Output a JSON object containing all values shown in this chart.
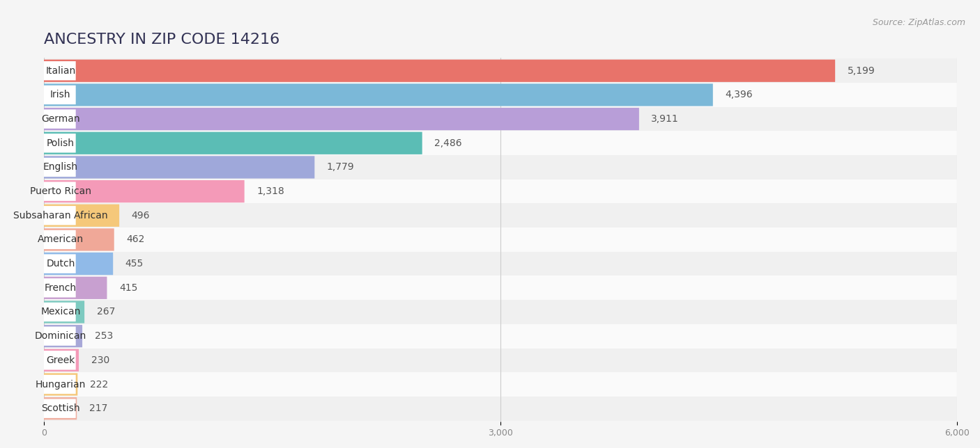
{
  "title": "ANCESTRY IN ZIP CODE 14216",
  "source": "Source: ZipAtlas.com",
  "categories": [
    "Italian",
    "Irish",
    "German",
    "Polish",
    "English",
    "Puerto Rican",
    "Subsaharan African",
    "American",
    "Dutch",
    "French",
    "Mexican",
    "Dominican",
    "Greek",
    "Hungarian",
    "Scottish"
  ],
  "values": [
    5199,
    4396,
    3911,
    2486,
    1779,
    1318,
    496,
    462,
    455,
    415,
    267,
    253,
    230,
    222,
    217
  ],
  "bar_colors": [
    "#E8736A",
    "#7BB8D8",
    "#B89ED8",
    "#5BBDB5",
    "#9FA8DA",
    "#F49AB8",
    "#F5C87A",
    "#F0A898",
    "#90BAE8",
    "#C8A0D0",
    "#7DCAC0",
    "#A8A8D8",
    "#F49AB8",
    "#F5C87A",
    "#F0AFA0"
  ],
  "row_colors": [
    "#f0f0f0",
    "#fafafa"
  ],
  "xlim": [
    0,
    6000
  ],
  "xticks": [
    0,
    3000,
    6000
  ],
  "background_color": "#f5f5f5",
  "title_fontsize": 16,
  "label_fontsize": 10,
  "value_fontsize": 10,
  "value_color": "#555555",
  "label_text_color": "#333333",
  "title_color": "#333355"
}
